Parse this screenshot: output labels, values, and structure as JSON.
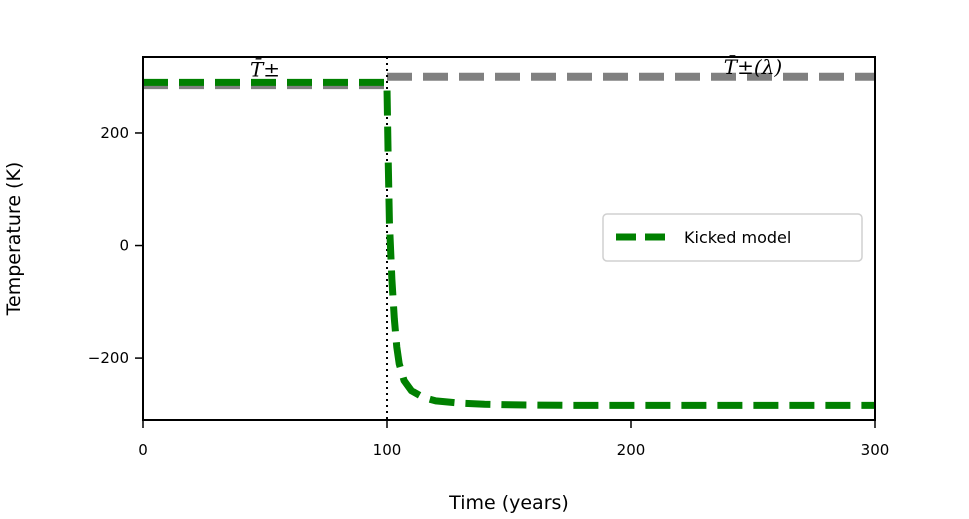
{
  "chart_data": {
    "type": "line",
    "xlabel": "Time (years)",
    "ylabel": "Temperature (K)",
    "xlim": [
      0,
      300
    ],
    "ylim": [
      -310,
      335
    ],
    "xticks": [
      0,
      100,
      200,
      300
    ],
    "yticks": [
      -200,
      0,
      200
    ],
    "grid": false,
    "legend_location": "center-right",
    "series": [
      {
        "name": "Kicked model",
        "color": "#008000",
        "line_style": "dashed",
        "x": [
          0,
          99.9,
          100,
          100.5,
          101,
          102,
          103,
          104,
          105,
          107,
          110,
          115,
          120,
          130,
          140,
          150,
          175,
          200,
          250,
          300
        ],
        "y": [
          290,
          290,
          280,
          150,
          40,
          -60,
          -130,
          -180,
          -210,
          -240,
          -258,
          -270,
          -276,
          -280,
          -282,
          -283,
          -284,
          -284,
          -284,
          -284
        ]
      }
    ],
    "reference_lines": [
      {
        "label": "T^±",
        "color": "#808080",
        "line_style": "dashed",
        "x": [
          0,
          100
        ],
        "y": [
          285,
          285
        ]
      },
      {
        "label": "T^±(λ)",
        "color": "#808080",
        "line_style": "dashed",
        "x": [
          100,
          300
        ],
        "y": [
          300,
          300
        ]
      }
    ],
    "vertical_lines": [
      {
        "x": 100,
        "color": "#000000",
        "line_style": "dotted"
      }
    ],
    "annotations": [
      {
        "text": "T̄±",
        "x": 50,
        "y": 300
      },
      {
        "text": "T̄±(λ)",
        "x": 250,
        "y": 305
      }
    ]
  }
}
